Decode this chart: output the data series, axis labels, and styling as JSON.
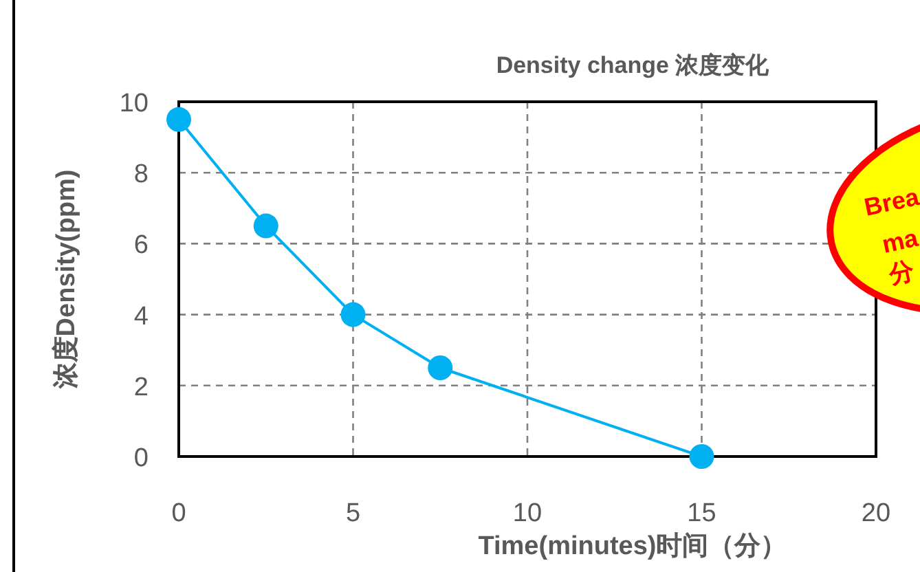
{
  "chart_data": {
    "type": "line",
    "title": "Density change 浓度变化",
    "xlabel": "Time(minutes)时间（分）",
    "ylabel": "浓度Density(ppm)",
    "x": [
      0,
      2.5,
      5,
      7.5,
      15
    ],
    "series": [
      {
        "color": "#00b0f0",
        "values": [
          9.5,
          6.5,
          4,
          2.5,
          0
        ]
      }
    ],
    "xlim": [
      0,
      20
    ],
    "xticks": [
      0,
      5,
      10,
      15,
      20
    ],
    "ylim": [
      0,
      10
    ],
    "yticks": [
      0,
      2,
      4,
      6,
      8,
      10
    ],
    "grid": true,
    "marker": "circle",
    "line_style": "solid",
    "annotations": [
      "Brea\nma\n分"
    ]
  }
}
